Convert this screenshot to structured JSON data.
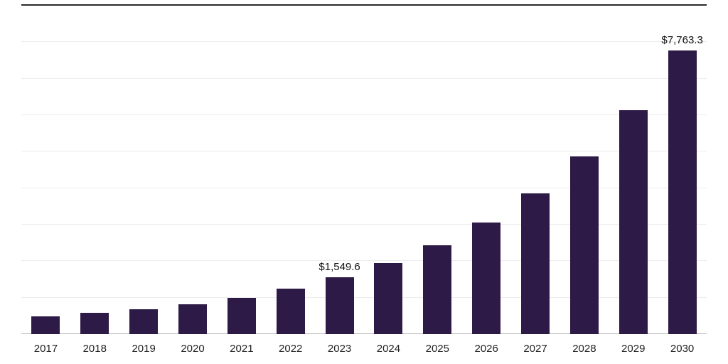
{
  "chart_data": {
    "type": "bar",
    "title": "",
    "xlabel": "",
    "ylabel": "",
    "categories": [
      "2017",
      "2018",
      "2019",
      "2020",
      "2021",
      "2022",
      "2023",
      "2024",
      "2025",
      "2026",
      "2027",
      "2028",
      "2029",
      "2030"
    ],
    "values": [
      480,
      575,
      685,
      815,
      1000,
      1240,
      1549.6,
      1950,
      2440,
      3060,
      3860,
      4870,
      6140,
      7763.3
    ],
    "data_labels": {
      "2023": "$1,549.6",
      "2030": "$7,763.3"
    },
    "ylim": [
      0,
      9000
    ],
    "grid_interval": 1000,
    "grid": "on",
    "legend": "none",
    "bar_color": "#2e1a47",
    "gridline_color": "#ececec",
    "top_rule_color": "#2b2b2b",
    "axis_line_color": "#b3b3b3"
  }
}
